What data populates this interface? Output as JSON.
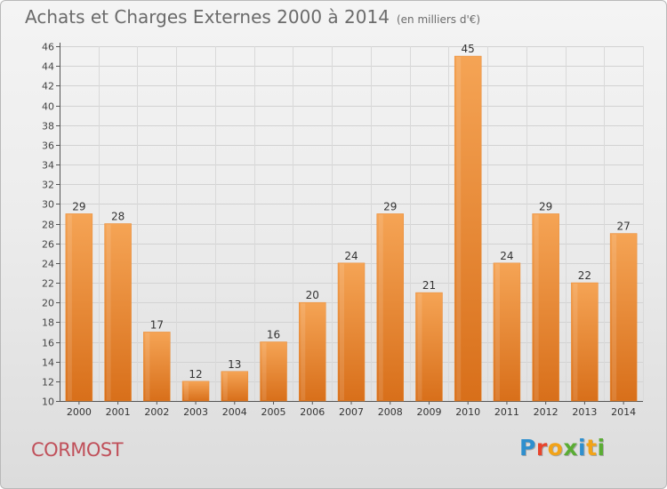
{
  "header": {
    "title": "Achats et Charges Externes 2000 à 2014",
    "subtitle": "(en milliers d'€)"
  },
  "commune_name": "CORMOST",
  "logo": {
    "text": "Proxiti",
    "letters": [
      {
        "char": "P",
        "color": "#2e8fce"
      },
      {
        "char": "r",
        "color": "#e8442c"
      },
      {
        "char": "o",
        "color": "#f2a318"
      },
      {
        "char": "x",
        "color": "#5aac34"
      },
      {
        "char": "i",
        "color": "#2e8fce"
      },
      {
        "char": "t",
        "color": "#f2a318"
      },
      {
        "char": "i",
        "color": "#5aac34"
      }
    ]
  },
  "chart_data": {
    "type": "bar",
    "title": "Achats et Charges Externes 2000 à 2014",
    "subtitle": "(en milliers d'€)",
    "categories": [
      "2000",
      "2001",
      "2002",
      "2003",
      "2004",
      "2005",
      "2006",
      "2007",
      "2008",
      "2009",
      "2010",
      "2011",
      "2012",
      "2013",
      "2014"
    ],
    "values": [
      29,
      28,
      17,
      12,
      13,
      16,
      20,
      24,
      29,
      21,
      45,
      24,
      29,
      22,
      27
    ],
    "xlabel": "",
    "ylabel": "",
    "ylim": [
      10,
      46
    ],
    "yticks": [
      10,
      12,
      14,
      16,
      18,
      20,
      22,
      24,
      26,
      28,
      30,
      32,
      34,
      36,
      38,
      40,
      42,
      44,
      46
    ],
    "grid": true,
    "data_labels": true,
    "bar_color": "#f29a46",
    "bar_color_dark": "#d9721c"
  }
}
